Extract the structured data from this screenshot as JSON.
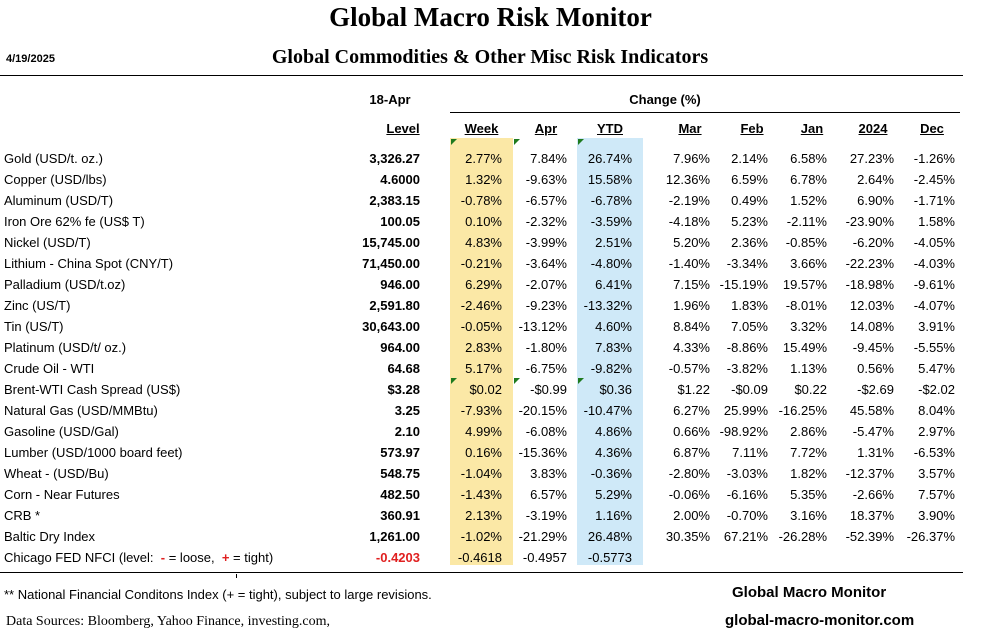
{
  "header": {
    "title": "Global Macro Risk Monitor",
    "date": "4/19/2025",
    "subtitle": "Global Commodities & Other Misc Risk Indicators"
  },
  "table": {
    "level_date": "18-Apr",
    "change_label": "Change (%)",
    "columns": [
      "Level",
      "Week",
      "Apr",
      "YTD",
      "Mar",
      "Feb",
      "Jan",
      "2024",
      "Dec"
    ],
    "rows": [
      {
        "name": "Gold (USD/t. oz.)",
        "level": "3,326.27",
        "week": "2.77%",
        "apr": "7.84%",
        "ytd": "26.74%",
        "mar": "7.96%",
        "feb": "2.14%",
        "jan": "6.58%",
        "y2024": "27.23%",
        "dec": "-1.26%"
      },
      {
        "name": "Copper (USD/lbs)",
        "level": "4.6000",
        "week": "1.32%",
        "apr": "-9.63%",
        "ytd": "15.58%",
        "mar": "12.36%",
        "feb": "6.59%",
        "jan": "6.78%",
        "y2024": "2.64%",
        "dec": "-2.45%"
      },
      {
        "name": "Aluminum (USD/T)",
        "level": "2,383.15",
        "week": "-0.78%",
        "apr": "-6.57%",
        "ytd": "-6.78%",
        "mar": "-2.19%",
        "feb": "0.49%",
        "jan": "1.52%",
        "y2024": "6.90%",
        "dec": "-1.71%"
      },
      {
        "name": "Iron Ore 62% fe (US$ T)",
        "level": "100.05",
        "week": "0.10%",
        "apr": "-2.32%",
        "ytd": "-3.59%",
        "mar": "-4.18%",
        "feb": "5.23%",
        "jan": "-2.11%",
        "y2024": "-23.90%",
        "dec": "1.58%"
      },
      {
        "name": "Nickel (USD/T)",
        "level": "15,745.00",
        "week": "4.83%",
        "apr": "-3.99%",
        "ytd": "2.51%",
        "mar": "5.20%",
        "feb": "2.36%",
        "jan": "-0.85%",
        "y2024": "-6.20%",
        "dec": "-4.05%"
      },
      {
        "name": "Lithium - China Spot (CNY/T)",
        "level": "71,450.00",
        "week": "-0.21%",
        "apr": "-3.64%",
        "ytd": "-4.80%",
        "mar": "-1.40%",
        "feb": "-3.34%",
        "jan": "3.66%",
        "y2024": "-22.23%",
        "dec": "-4.03%"
      },
      {
        "name": "Palladium (USD/t.oz)",
        "level": "946.00",
        "week": "6.29%",
        "apr": "-2.07%",
        "ytd": "6.41%",
        "mar": "7.15%",
        "feb": "-15.19%",
        "jan": "19.57%",
        "y2024": "-18.98%",
        "dec": "-9.61%"
      },
      {
        "name": "Zinc (US/T)",
        "level": "2,591.80",
        "week": "-2.46%",
        "apr": "-9.23%",
        "ytd": "-13.32%",
        "mar": "1.96%",
        "feb": "1.83%",
        "jan": "-8.01%",
        "y2024": "12.03%",
        "dec": "-4.07%"
      },
      {
        "name": "Tin (US/T)",
        "level": "30,643.00",
        "week": "-0.05%",
        "apr": "-13.12%",
        "ytd": "4.60%",
        "mar": "8.84%",
        "feb": "7.05%",
        "jan": "3.32%",
        "y2024": "14.08%",
        "dec": "3.91%"
      },
      {
        "name": "Platinum (USD/t/ oz.)",
        "level": "964.00",
        "week": "2.83%",
        "apr": "-1.80%",
        "ytd": "7.83%",
        "mar": "4.33%",
        "feb": "-8.86%",
        "jan": "15.49%",
        "y2024": "-9.45%",
        "dec": "-5.55%"
      },
      {
        "name": "Crude Oil - WTI",
        "level": "64.68",
        "week": "5.17%",
        "apr": "-6.75%",
        "ytd": "-9.82%",
        "mar": "-0.57%",
        "feb": "-3.82%",
        "jan": "1.13%",
        "y2024": "0.56%",
        "dec": "5.47%"
      },
      {
        "name": "Brent-WTI Cash Spread (US$)",
        "level": "$3.28",
        "week": "$0.02",
        "apr": "-$0.99",
        "ytd": "$0.36",
        "mar": "$1.22",
        "feb": "-$0.09",
        "jan": "$0.22",
        "y2024": "-$2.69",
        "dec": "-$2.02"
      },
      {
        "name": "Natural Gas  (USD/MMBtu)",
        "level": "3.25",
        "week": "-7.93%",
        "apr": "-20.15%",
        "ytd": "-10.47%",
        "mar": "6.27%",
        "feb": "25.99%",
        "jan": "-16.25%",
        "y2024": "45.58%",
        "dec": "8.04%"
      },
      {
        "name": "Gasoline (USD/Gal)",
        "level": "2.10",
        "week": "4.99%",
        "apr": "-6.08%",
        "ytd": "4.86%",
        "mar": "0.66%",
        "feb": "-98.92%",
        "jan": "2.86%",
        "y2024": "-5.47%",
        "dec": "2.97%"
      },
      {
        "name": "Lumber (USD/1000 board feet)",
        "level": "573.97",
        "week": "0.16%",
        "apr": "-15.36%",
        "ytd": "4.36%",
        "mar": "6.87%",
        "feb": "7.11%",
        "jan": "7.72%",
        "y2024": "1.31%",
        "dec": "-6.53%"
      },
      {
        "name": "Wheat - (USD/Bu)",
        "level": "548.75",
        "week": "-1.04%",
        "apr": "3.83%",
        "ytd": "-0.36%",
        "mar": "-2.80%",
        "feb": "-3.03%",
        "jan": "1.82%",
        "y2024": "-12.37%",
        "dec": "3.57%"
      },
      {
        "name": "Corn - Near Futures",
        "level": "482.50",
        "week": "-1.43%",
        "apr": "6.57%",
        "ytd": "5.29%",
        "mar": "-0.06%",
        "feb": "-6.16%",
        "jan": "5.35%",
        "y2024": "-2.66%",
        "dec": "7.57%"
      },
      {
        "name": "CRB *",
        "level": "360.91",
        "week": "2.13%",
        "apr": "-3.19%",
        "ytd": "1.16%",
        "mar": "2.00%",
        "feb": "-0.70%",
        "jan": "3.16%",
        "y2024": "18.37%",
        "dec": "3.90%"
      },
      {
        "name": "Baltic Dry Index",
        "level": "1,261.00",
        "week": "-1.02%",
        "apr": "-21.29%",
        "ytd": "26.48%",
        "mar": "30.35%",
        "feb": "67.21%",
        "jan": "-26.28%",
        "y2024": "-52.39%",
        "dec": "-26.37%"
      },
      {
        "name_pre": "Chicago FED NFCI (level:  ",
        "name_neg": "-",
        "name_mid": " = loose,  ",
        "name_pos": "+",
        "name_post": " = tight)",
        "level": "-0.4203",
        "week": "-0.4618",
        "apr": "-0.4957",
        "ytd": "-0.5773",
        "mar": "",
        "feb": "",
        "jan": "",
        "y2024": "",
        "dec": ""
      }
    ]
  },
  "footer": {
    "note": "** National Financial Conditons Index (+ =  tight), subject to large revisions.",
    "sources": "Data Sources:  Bloomberg,  Yahoo Finance, investing.com,",
    "brand_name": "Global Macro Monitor",
    "brand_url": "global-macro-monitor.com"
  },
  "colors": {
    "week_band": "#fbe8a6",
    "ytd_band": "#cfe9f8",
    "negative_level": "#e02020",
    "comment_marker": "#1e7a1e"
  }
}
